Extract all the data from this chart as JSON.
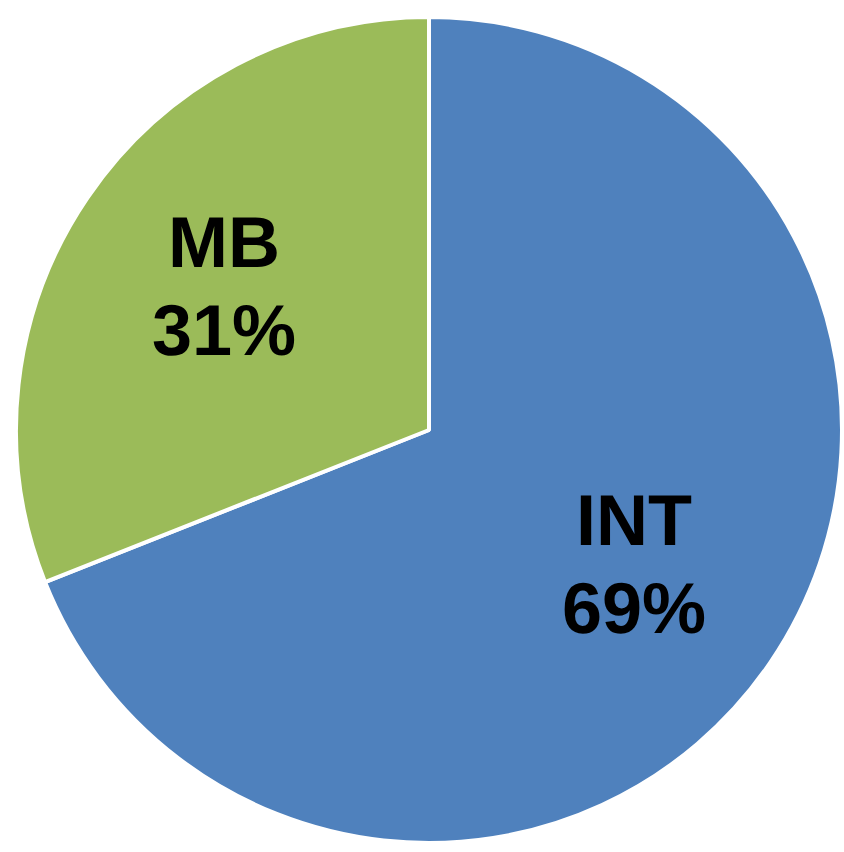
{
  "chart_data": {
    "type": "pie",
    "categories": [
      "INT",
      "MB"
    ],
    "values": [
      69,
      31
    ],
    "colors": [
      "#4f81bd",
      "#9bbb59"
    ],
    "value_labels": [
      "69%",
      "31%"
    ]
  }
}
